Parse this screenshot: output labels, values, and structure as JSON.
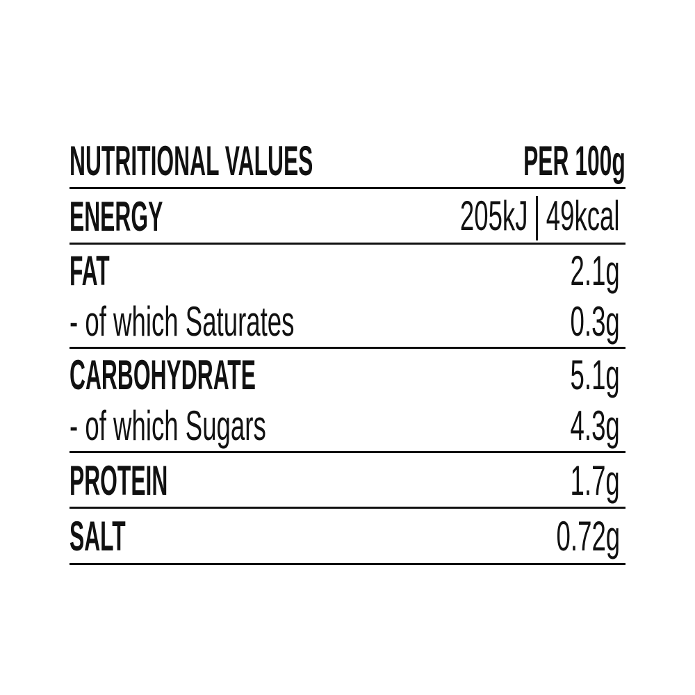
{
  "colors": {
    "background": "#ffffff",
    "text": "#111111",
    "line": "#111111"
  },
  "table": {
    "header": {
      "title": "NUTRITIONAL VALUES",
      "unit": "PER 100g"
    },
    "energy": {
      "label": "ENERGY",
      "kj": "205kJ",
      "kcal": "49kcal"
    },
    "fat": {
      "label": "FAT",
      "value": "2.1g",
      "sub_label": "- of which Saturates",
      "sub_value": "0.3g"
    },
    "carbohydrate": {
      "label": "CARBOHYDRATE",
      "value": "5.1g",
      "sub_label": "- of which Sugars",
      "sub_value": "4.3g"
    },
    "protein": {
      "label": "PROTEIN",
      "value": "1.7g"
    },
    "salt": {
      "label": "SALT",
      "value": "0.72g"
    }
  }
}
